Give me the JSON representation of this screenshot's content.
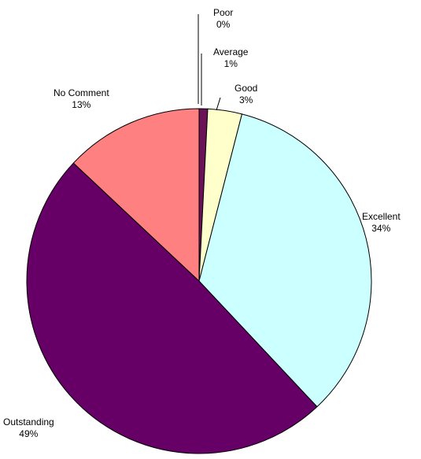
{
  "chart_data": {
    "type": "pie",
    "title": "",
    "slices": [
      {
        "label": "Poor",
        "pct_label": "0%",
        "value": 0.0,
        "color": "#6b1157"
      },
      {
        "label": "Average",
        "pct_label": "1%",
        "value": 0.8,
        "color": "#6b1157"
      },
      {
        "label": "Good",
        "pct_label": "3%",
        "value": 3.2,
        "color": "#ffffcc"
      },
      {
        "label": "Excellent",
        "pct_label": "34%",
        "value": 34.0,
        "color": "#ccffff"
      },
      {
        "label": "Outstanding",
        "pct_label": "49%",
        "value": 49.0,
        "color": "#660066"
      },
      {
        "label": "No Comment",
        "pct_label": "13%",
        "value": 13.0,
        "color": "#ff8080"
      }
    ],
    "start_angle": "12 o'clock",
    "direction": "clockwise",
    "legend": "none (labels placed next to slices)",
    "slice_border_color": "#000000"
  }
}
